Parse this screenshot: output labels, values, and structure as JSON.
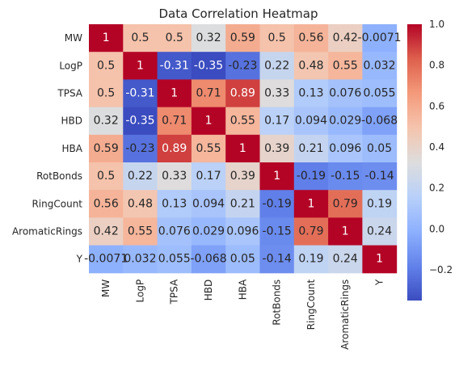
{
  "chart_data": {
    "type": "heatmap",
    "title": "Data Correlation Heatmap",
    "colormap": "coolwarm",
    "x_categories": [
      "MW",
      "LogP",
      "TPSA",
      "HBD",
      "HBA",
      "RotBonds",
      "RingCount",
      "AromaticRings",
      "Y"
    ],
    "y_categories": [
      "MW",
      "LogP",
      "TPSA",
      "HBD",
      "HBA",
      "RotBonds",
      "RingCount",
      "AromaticRings",
      "Y"
    ],
    "values": [
      [
        1,
        0.5,
        0.5,
        0.32,
        0.59,
        0.5,
        0.56,
        0.42,
        -0.0071
      ],
      [
        0.5,
        1,
        -0.31,
        -0.35,
        -0.23,
        0.22,
        0.48,
        0.55,
        0.032
      ],
      [
        0.5,
        -0.31,
        1,
        0.71,
        0.89,
        0.33,
        0.13,
        0.076,
        0.055
      ],
      [
        0.32,
        -0.35,
        0.71,
        1,
        0.55,
        0.17,
        0.094,
        0.029,
        -0.068
      ],
      [
        0.59,
        -0.23,
        0.89,
        0.55,
        1,
        0.39,
        0.21,
        0.096,
        0.05
      ],
      [
        0.5,
        0.22,
        0.33,
        0.17,
        0.39,
        1,
        -0.19,
        -0.15,
        -0.14
      ],
      [
        0.56,
        0.48,
        0.13,
        0.094,
        0.21,
        -0.19,
        1,
        0.79,
        0.19
      ],
      [
        0.42,
        0.55,
        0.076,
        0.029,
        0.096,
        -0.15,
        0.79,
        1,
        0.24
      ],
      [
        -0.0071,
        0.032,
        0.055,
        -0.068,
        0.05,
        -0.14,
        0.19,
        0.24,
        1
      ]
    ],
    "annotation_labels": [
      [
        "1",
        "0.5",
        "0.5",
        "0.32",
        "0.59",
        "0.5",
        "0.56",
        "0.42",
        "-0.0071"
      ],
      [
        "0.5",
        "1",
        "-0.31",
        "-0.35",
        "-0.23",
        "0.22",
        "0.48",
        "0.55",
        "0.032"
      ],
      [
        "0.5",
        "-0.31",
        "1",
        "0.71",
        "0.89",
        "0.33",
        "0.13",
        "0.076",
        "0.055"
      ],
      [
        "0.32",
        "-0.35",
        "0.71",
        "1",
        "0.55",
        "0.17",
        "0.094",
        "0.029",
        "-0.068"
      ],
      [
        "0.59",
        "-0.23",
        "0.89",
        "0.55",
        "1",
        "0.39",
        "0.21",
        "0.096",
        "0.05"
      ],
      [
        "0.5",
        "0.22",
        "0.33",
        "0.17",
        "0.39",
        "1",
        "-0.19",
        "-0.15",
        "-0.14"
      ],
      [
        "0.56",
        "0.48",
        "0.13",
        "0.094",
        "0.21",
        "-0.19",
        "1",
        "0.79",
        "0.19"
      ],
      [
        "0.42",
        "0.55",
        "0.076",
        "0.029",
        "0.096",
        "-0.15",
        "0.79",
        "1",
        "0.24"
      ],
      [
        "-0.0071",
        "0.032",
        "0.055",
        "-0.068",
        "0.05",
        "-0.14",
        "0.19",
        "0.24",
        "1"
      ]
    ],
    "vmin": -0.35,
    "vmax": 1,
    "colorbar": {
      "ticks": [
        -0.2,
        0.0,
        0.2,
        0.4,
        0.6,
        0.8,
        1.0
      ],
      "tick_labels": [
        "−0.2",
        "0.0",
        "0.2",
        "0.4",
        "0.6",
        "0.8",
        "1.0"
      ]
    },
    "xlabel": "",
    "ylabel": "",
    "grid": false
  }
}
